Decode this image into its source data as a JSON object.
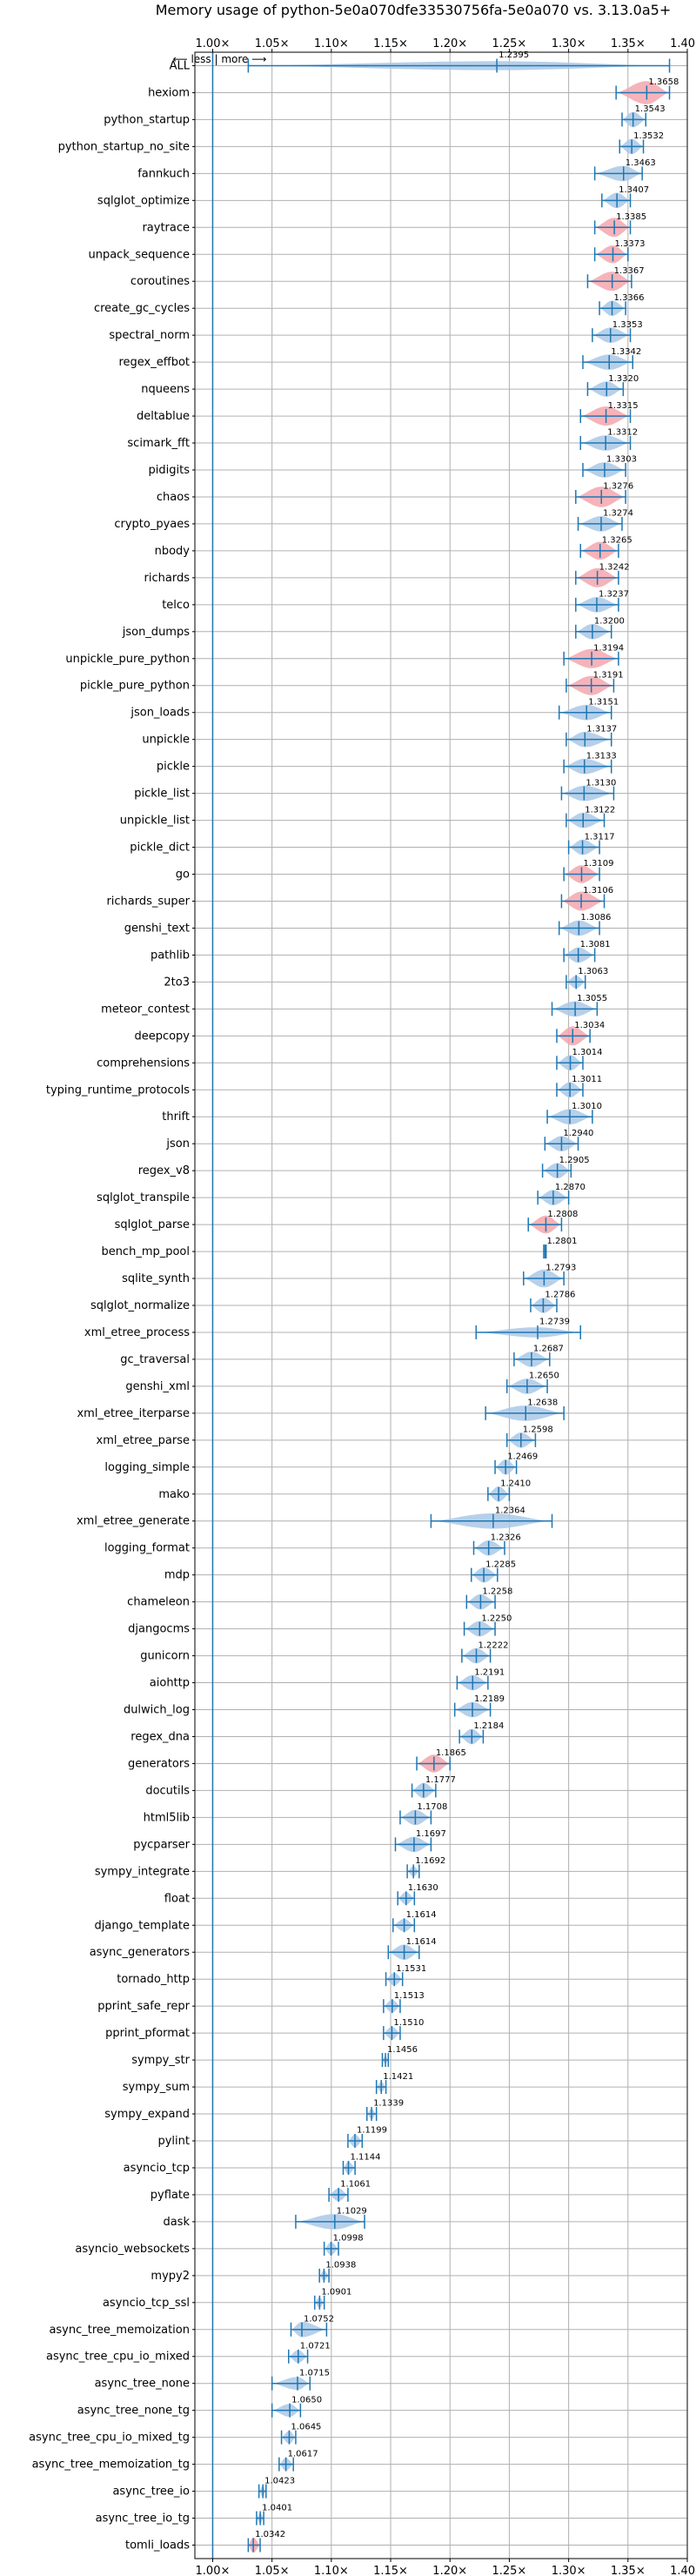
{
  "chart_data": {
    "type": "violin",
    "title": "Memory usage of python-5e0a070dfe33530756fa-5e0a070 vs. 3.13.0a5+",
    "direction_label": "⟵ less  |  more ⟶",
    "xlim": [
      0.985,
      1.4
    ],
    "x_ticks": [
      1.0,
      1.05,
      1.1,
      1.15,
      1.2,
      1.25,
      1.3,
      1.35,
      1.4
    ],
    "x_tick_labels": [
      "1.00×",
      "1.05×",
      "1.10×",
      "1.15×",
      "1.20×",
      "1.25×",
      "1.30×",
      "1.35×",
      "1.40×"
    ],
    "grid": true,
    "colors": {
      "normal": "#aac8e6",
      "highlight": "#f4a6ad",
      "line": "#1f77b4",
      "baseline": "#1f77b4"
    },
    "series": [
      {
        "name": "ALL",
        "value": 1.2395,
        "label": "1.2395",
        "min": 1.03,
        "max": 1.385,
        "width": 0.35,
        "highlight": false
      },
      {
        "name": "hexiom",
        "value": 1.3658,
        "label": "1.3658",
        "min": 1.34,
        "max": 1.385,
        "width": 0.9,
        "highlight": true
      },
      {
        "name": "python_startup",
        "value": 1.3543,
        "label": "1.3543",
        "min": 1.345,
        "max": 1.365,
        "width": 0.6,
        "highlight": false
      },
      {
        "name": "python_startup_no_site",
        "value": 1.3532,
        "label": "1.3532",
        "min": 1.343,
        "max": 1.363,
        "width": 0.6,
        "highlight": false
      },
      {
        "name": "fannkuch",
        "value": 1.3463,
        "label": "1.3463",
        "min": 1.322,
        "max": 1.362,
        "width": 0.6,
        "highlight": false
      },
      {
        "name": "sqlglot_optimize",
        "value": 1.3407,
        "label": "1.3407",
        "min": 1.328,
        "max": 1.352,
        "width": 0.6,
        "highlight": false
      },
      {
        "name": "raytrace",
        "value": 1.3385,
        "label": "1.3385",
        "min": 1.322,
        "max": 1.352,
        "width": 0.75,
        "highlight": true
      },
      {
        "name": "unpack_sequence",
        "value": 1.3373,
        "label": "1.3373",
        "min": 1.322,
        "max": 1.35,
        "width": 0.7,
        "highlight": true
      },
      {
        "name": "coroutines",
        "value": 1.3367,
        "label": "1.3367",
        "min": 1.316,
        "max": 1.353,
        "width": 0.75,
        "highlight": true
      },
      {
        "name": "create_gc_cycles",
        "value": 1.3366,
        "label": "1.3366",
        "min": 1.326,
        "max": 1.348,
        "width": 0.6,
        "highlight": false
      },
      {
        "name": "spectral_norm",
        "value": 1.3353,
        "label": "1.3353",
        "min": 1.32,
        "max": 1.352,
        "width": 0.6,
        "highlight": false
      },
      {
        "name": "regex_effbot",
        "value": 1.3342,
        "label": "1.3342",
        "min": 1.312,
        "max": 1.354,
        "width": 0.6,
        "highlight": false
      },
      {
        "name": "nqueens",
        "value": 1.332,
        "label": "1.3320",
        "min": 1.316,
        "max": 1.346,
        "width": 0.6,
        "highlight": false
      },
      {
        "name": "deltablue",
        "value": 1.3315,
        "label": "1.3315",
        "min": 1.31,
        "max": 1.352,
        "width": 0.75,
        "highlight": true
      },
      {
        "name": "scimark_fft",
        "value": 1.3312,
        "label": "1.3312",
        "min": 1.31,
        "max": 1.352,
        "width": 0.6,
        "highlight": false
      },
      {
        "name": "pidigits",
        "value": 1.3303,
        "label": "1.3303",
        "min": 1.312,
        "max": 1.348,
        "width": 0.6,
        "highlight": false
      },
      {
        "name": "chaos",
        "value": 1.3276,
        "label": "1.3276",
        "min": 1.306,
        "max": 1.348,
        "width": 0.8,
        "highlight": true
      },
      {
        "name": "crypto_pyaes",
        "value": 1.3274,
        "label": "1.3274",
        "min": 1.308,
        "max": 1.345,
        "width": 0.6,
        "highlight": false
      },
      {
        "name": "nbody",
        "value": 1.3265,
        "label": "1.3265",
        "min": 1.31,
        "max": 1.342,
        "width": 0.7,
        "highlight": true
      },
      {
        "name": "richards",
        "value": 1.3242,
        "label": "1.3242",
        "min": 1.306,
        "max": 1.342,
        "width": 0.75,
        "highlight": true
      },
      {
        "name": "telco",
        "value": 1.3237,
        "label": "1.3237",
        "min": 1.306,
        "max": 1.342,
        "width": 0.6,
        "highlight": false
      },
      {
        "name": "json_dumps",
        "value": 1.32,
        "label": "1.3200",
        "min": 1.306,
        "max": 1.336,
        "width": 0.6,
        "highlight": false
      },
      {
        "name": "unpickle_pure_python",
        "value": 1.3194,
        "label": "1.3194",
        "min": 1.296,
        "max": 1.342,
        "width": 0.75,
        "highlight": true
      },
      {
        "name": "pickle_pure_python",
        "value": 1.3191,
        "label": "1.3191",
        "min": 1.298,
        "max": 1.338,
        "width": 0.75,
        "highlight": true
      },
      {
        "name": "json_loads",
        "value": 1.3151,
        "label": "1.3151",
        "min": 1.292,
        "max": 1.336,
        "width": 0.6,
        "highlight": false
      },
      {
        "name": "unpickle",
        "value": 1.3137,
        "label": "1.3137",
        "min": 1.298,
        "max": 1.336,
        "width": 0.6,
        "highlight": false
      },
      {
        "name": "pickle",
        "value": 1.3133,
        "label": "1.3133",
        "min": 1.296,
        "max": 1.336,
        "width": 0.6,
        "highlight": false
      },
      {
        "name": "pickle_list",
        "value": 1.313,
        "label": "1.3130",
        "min": 1.294,
        "max": 1.338,
        "width": 0.6,
        "highlight": false
      },
      {
        "name": "unpickle_list",
        "value": 1.3122,
        "label": "1.3122",
        "min": 1.298,
        "max": 1.33,
        "width": 0.6,
        "highlight": false
      },
      {
        "name": "pickle_dict",
        "value": 1.3117,
        "label": "1.3117",
        "min": 1.3,
        "max": 1.326,
        "width": 0.6,
        "highlight": false
      },
      {
        "name": "go",
        "value": 1.3109,
        "label": "1.3109",
        "min": 1.296,
        "max": 1.326,
        "width": 0.7,
        "highlight": true
      },
      {
        "name": "richards_super",
        "value": 1.3106,
        "label": "1.3106",
        "min": 1.294,
        "max": 1.33,
        "width": 0.75,
        "highlight": true
      },
      {
        "name": "genshi_text",
        "value": 1.3086,
        "label": "1.3086",
        "min": 1.292,
        "max": 1.326,
        "width": 0.6,
        "highlight": false
      },
      {
        "name": "pathlib",
        "value": 1.3081,
        "label": "1.3081",
        "min": 1.296,
        "max": 1.322,
        "width": 0.6,
        "highlight": false
      },
      {
        "name": "2to3",
        "value": 1.3063,
        "label": "1.3063",
        "min": 1.298,
        "max": 1.314,
        "width": 0.5,
        "highlight": false
      },
      {
        "name": "meteor_contest",
        "value": 1.3055,
        "label": "1.3055",
        "min": 1.286,
        "max": 1.324,
        "width": 0.6,
        "highlight": false
      },
      {
        "name": "deepcopy",
        "value": 1.3034,
        "label": "1.3034",
        "min": 1.29,
        "max": 1.318,
        "width": 0.75,
        "highlight": true
      },
      {
        "name": "comprehensions",
        "value": 1.3014,
        "label": "1.3014",
        "min": 1.29,
        "max": 1.312,
        "width": 0.6,
        "highlight": false
      },
      {
        "name": "typing_runtime_protocols",
        "value": 1.3011,
        "label": "1.3011",
        "min": 1.29,
        "max": 1.312,
        "width": 0.6,
        "highlight": false
      },
      {
        "name": "thrift",
        "value": 1.301,
        "label": "1.3010",
        "min": 1.282,
        "max": 1.32,
        "width": 0.6,
        "highlight": false
      },
      {
        "name": "json",
        "value": 1.294,
        "label": "1.2940",
        "min": 1.28,
        "max": 1.308,
        "width": 0.6,
        "highlight": false
      },
      {
        "name": "regex_v8",
        "value": 1.2905,
        "label": "1.2905",
        "min": 1.278,
        "max": 1.302,
        "width": 0.6,
        "highlight": false
      },
      {
        "name": "sqlglot_transpile",
        "value": 1.287,
        "label": "1.2870",
        "min": 1.274,
        "max": 1.3,
        "width": 0.6,
        "highlight": false
      },
      {
        "name": "sqlglot_parse",
        "value": 1.2808,
        "label": "1.2808",
        "min": 1.266,
        "max": 1.294,
        "width": 0.7,
        "highlight": true
      },
      {
        "name": "bench_mp_pool",
        "value": 1.2801,
        "label": "1.2801",
        "min": 1.279,
        "max": 1.281,
        "width": 0.1,
        "highlight": false
      },
      {
        "name": "sqlite_synth",
        "value": 1.2793,
        "label": "1.2793",
        "min": 1.262,
        "max": 1.296,
        "width": 0.7,
        "highlight": false
      },
      {
        "name": "sqlglot_normalize",
        "value": 1.2786,
        "label": "1.2786",
        "min": 1.268,
        "max": 1.29,
        "width": 0.6,
        "highlight": false
      },
      {
        "name": "xml_etree_process",
        "value": 1.2739,
        "label": "1.2739",
        "min": 1.222,
        "max": 1.31,
        "width": 0.4,
        "highlight": false
      },
      {
        "name": "gc_traversal",
        "value": 1.2687,
        "label": "1.2687",
        "min": 1.254,
        "max": 1.284,
        "width": 0.6,
        "highlight": false
      },
      {
        "name": "genshi_xml",
        "value": 1.265,
        "label": "1.2650",
        "min": 1.248,
        "max": 1.282,
        "width": 0.6,
        "highlight": false
      },
      {
        "name": "xml_etree_iterparse",
        "value": 1.2638,
        "label": "1.2638",
        "min": 1.23,
        "max": 1.296,
        "width": 0.6,
        "highlight": false
      },
      {
        "name": "xml_etree_parse",
        "value": 1.2598,
        "label": "1.2598",
        "min": 1.248,
        "max": 1.272,
        "width": 0.6,
        "highlight": false
      },
      {
        "name": "logging_simple",
        "value": 1.2469,
        "label": "1.2469",
        "min": 1.238,
        "max": 1.256,
        "width": 0.6,
        "highlight": false
      },
      {
        "name": "mako",
        "value": 1.241,
        "label": "1.2410",
        "min": 1.232,
        "max": 1.25,
        "width": 0.6,
        "highlight": false
      },
      {
        "name": "xml_etree_generate",
        "value": 1.2364,
        "label": "1.2364",
        "min": 1.184,
        "max": 1.286,
        "width": 0.6,
        "highlight": false
      },
      {
        "name": "logging_format",
        "value": 1.2326,
        "label": "1.2326",
        "min": 1.22,
        "max": 1.246,
        "width": 0.6,
        "highlight": false
      },
      {
        "name": "mdp",
        "value": 1.2285,
        "label": "1.2285",
        "min": 1.218,
        "max": 1.24,
        "width": 0.6,
        "highlight": false
      },
      {
        "name": "chameleon",
        "value": 1.2258,
        "label": "1.2258",
        "min": 1.214,
        "max": 1.238,
        "width": 0.6,
        "highlight": false
      },
      {
        "name": "djangocms",
        "value": 1.225,
        "label": "1.2250",
        "min": 1.212,
        "max": 1.238,
        "width": 0.6,
        "highlight": false
      },
      {
        "name": "gunicorn",
        "value": 1.2222,
        "label": "1.2222",
        "min": 1.21,
        "max": 1.234,
        "width": 0.6,
        "highlight": false
      },
      {
        "name": "aiohttp",
        "value": 1.2191,
        "label": "1.2191",
        "min": 1.206,
        "max": 1.232,
        "width": 0.6,
        "highlight": false
      },
      {
        "name": "dulwich_log",
        "value": 1.2189,
        "label": "1.2189",
        "min": 1.204,
        "max": 1.234,
        "width": 0.6,
        "highlight": false
      },
      {
        "name": "regex_dna",
        "value": 1.2184,
        "label": "1.2184",
        "min": 1.208,
        "max": 1.228,
        "width": 0.6,
        "highlight": false
      },
      {
        "name": "generators",
        "value": 1.1865,
        "label": "1.1865",
        "min": 1.172,
        "max": 1.2,
        "width": 0.7,
        "highlight": true
      },
      {
        "name": "docutils",
        "value": 1.1777,
        "label": "1.1777",
        "min": 1.168,
        "max": 1.188,
        "width": 0.6,
        "highlight": false
      },
      {
        "name": "html5lib",
        "value": 1.1708,
        "label": "1.1708",
        "min": 1.158,
        "max": 1.184,
        "width": 0.6,
        "highlight": false
      },
      {
        "name": "pycparser",
        "value": 1.1697,
        "label": "1.1697",
        "min": 1.154,
        "max": 1.184,
        "width": 0.6,
        "highlight": false
      },
      {
        "name": "sympy_integrate",
        "value": 1.1692,
        "label": "1.1692",
        "min": 1.164,
        "max": 1.174,
        "width": 0.4,
        "highlight": false
      },
      {
        "name": "float",
        "value": 1.163,
        "label": "1.1630",
        "min": 1.156,
        "max": 1.17,
        "width": 0.5,
        "highlight": false
      },
      {
        "name": "django_template",
        "value": 1.1614,
        "label": "1.1614",
        "min": 1.152,
        "max": 1.17,
        "width": 0.5,
        "highlight": false
      },
      {
        "name": "async_generators",
        "value": 1.1614,
        "label": "1.1614",
        "min": 1.148,
        "max": 1.174,
        "width": 0.6,
        "highlight": false
      },
      {
        "name": "tornado_http",
        "value": 1.1531,
        "label": "1.1531",
        "min": 1.146,
        "max": 1.16,
        "width": 0.5,
        "highlight": false
      },
      {
        "name": "pprint_safe_repr",
        "value": 1.1513,
        "label": "1.1513",
        "min": 1.144,
        "max": 1.158,
        "width": 0.5,
        "highlight": false
      },
      {
        "name": "pprint_pformat",
        "value": 1.151,
        "label": "1.1510",
        "min": 1.144,
        "max": 1.158,
        "width": 0.5,
        "highlight": false
      },
      {
        "name": "sympy_str",
        "value": 1.1456,
        "label": "1.1456",
        "min": 1.143,
        "max": 1.148,
        "width": 0.3,
        "highlight": false
      },
      {
        "name": "sympy_sum",
        "value": 1.1421,
        "label": "1.1421",
        "min": 1.138,
        "max": 1.146,
        "width": 0.4,
        "highlight": false
      },
      {
        "name": "sympy_expand",
        "value": 1.1339,
        "label": "1.1339",
        "min": 1.13,
        "max": 1.138,
        "width": 0.4,
        "highlight": false
      },
      {
        "name": "pylint",
        "value": 1.1199,
        "label": "1.1199",
        "min": 1.114,
        "max": 1.126,
        "width": 0.5,
        "highlight": false
      },
      {
        "name": "asyncio_tcp",
        "value": 1.1144,
        "label": "1.1144",
        "min": 1.11,
        "max": 1.12,
        "width": 0.5,
        "highlight": false
      },
      {
        "name": "pyflate",
        "value": 1.1061,
        "label": "1.1061",
        "min": 1.098,
        "max": 1.114,
        "width": 0.5,
        "highlight": false
      },
      {
        "name": "dask",
        "value": 1.1029,
        "label": "1.1029",
        "min": 1.07,
        "max": 1.128,
        "width": 0.6,
        "highlight": false
      },
      {
        "name": "asyncio_websockets",
        "value": 1.0998,
        "label": "1.0998",
        "min": 1.094,
        "max": 1.106,
        "width": 0.5,
        "highlight": false
      },
      {
        "name": "mypy2",
        "value": 1.0938,
        "label": "1.0938",
        "min": 1.09,
        "max": 1.098,
        "width": 0.4,
        "highlight": false
      },
      {
        "name": "asyncio_tcp_ssl",
        "value": 1.0901,
        "label": "1.0901",
        "min": 1.086,
        "max": 1.094,
        "width": 0.4,
        "highlight": false
      },
      {
        "name": "async_tree_memoization",
        "value": 1.0752,
        "label": "1.0752",
        "min": 1.066,
        "max": 1.096,
        "width": 0.6,
        "highlight": false
      },
      {
        "name": "async_tree_cpu_io_mixed",
        "value": 1.0721,
        "label": "1.0721",
        "min": 1.064,
        "max": 1.08,
        "width": 0.5,
        "highlight": false
      },
      {
        "name": "async_tree_none",
        "value": 1.0715,
        "label": "1.0715",
        "min": 1.05,
        "max": 1.082,
        "width": 0.5,
        "highlight": false
      },
      {
        "name": "async_tree_none_tg",
        "value": 1.065,
        "label": "1.0650",
        "min": 1.05,
        "max": 1.074,
        "width": 0.5,
        "highlight": false
      },
      {
        "name": "async_tree_cpu_io_mixed_tg",
        "value": 1.0645,
        "label": "1.0645",
        "min": 1.058,
        "max": 1.07,
        "width": 0.5,
        "highlight": false
      },
      {
        "name": "async_tree_memoization_tg",
        "value": 1.0617,
        "label": "1.0617",
        "min": 1.056,
        "max": 1.068,
        "width": 0.5,
        "highlight": false
      },
      {
        "name": "async_tree_io",
        "value": 1.0423,
        "label": "1.0423",
        "min": 1.039,
        "max": 1.045,
        "width": 0.4,
        "highlight": false
      },
      {
        "name": "async_tree_io_tg",
        "value": 1.0401,
        "label": "1.0401",
        "min": 1.037,
        "max": 1.043,
        "width": 0.4,
        "highlight": false
      },
      {
        "name": "tomli_loads",
        "value": 1.0342,
        "label": "1.0342",
        "min": 1.03,
        "max": 1.04,
        "width": 0.6,
        "highlight": true
      }
    ]
  }
}
